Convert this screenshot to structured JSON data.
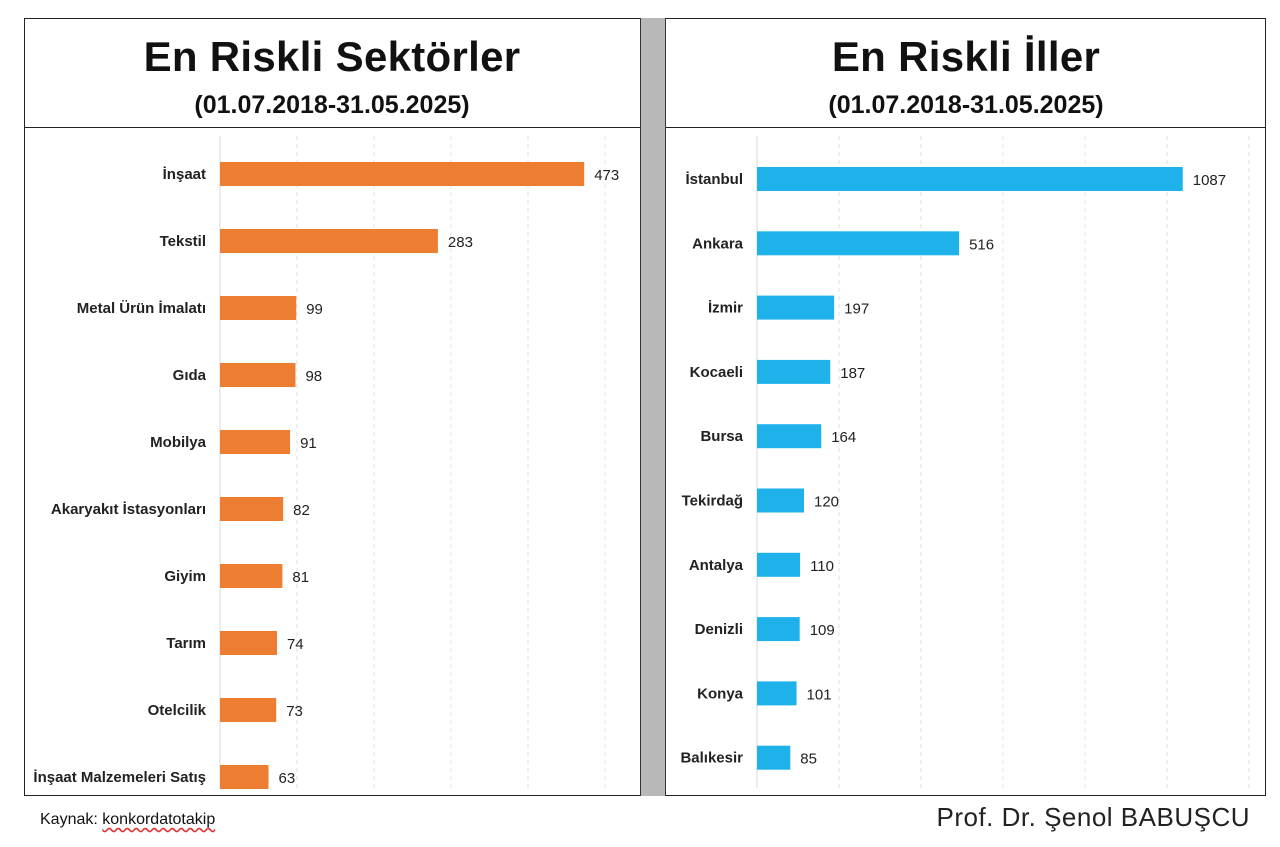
{
  "footer": {
    "source_prefix": "Kaynak: ",
    "source_link": "konkordatotakip",
    "author": "Prof. Dr. Şenol BABUŞCU"
  },
  "chart_data": [
    {
      "type": "bar",
      "orientation": "horizontal",
      "title": "En Riskli Sektörler",
      "subtitle": "(01.07.2018-31.05.2025)",
      "color": "#ED7D31",
      "categories": [
        "İnşaat",
        "Tekstil",
        "Metal Ürün İmalatı",
        "Gıda",
        "Mobilya",
        "Akaryakıt İstasyonları",
        "Giyim",
        "Tarım",
        "Otelcilik",
        "İnşaat Malzemeleri Satış"
      ],
      "values": [
        473,
        283,
        99,
        98,
        91,
        82,
        81,
        74,
        73,
        63
      ],
      "xlim": [
        0,
        500
      ],
      "grid": true
    },
    {
      "type": "bar",
      "orientation": "horizontal",
      "title": "En Riskli İller",
      "subtitle": "(01.07.2018-31.05.2025)",
      "color": "#1FB2EA",
      "categories": [
        "İstanbul",
        "Ankara",
        "İzmir",
        "Kocaeli",
        "Bursa",
        "Tekirdağ",
        "Antalya",
        "Denizli",
        "Konya",
        "Balıkesir"
      ],
      "values": [
        1087,
        516,
        197,
        187,
        164,
        120,
        110,
        109,
        101,
        85
      ],
      "xlim": [
        0,
        1200
      ],
      "grid": true
    }
  ]
}
